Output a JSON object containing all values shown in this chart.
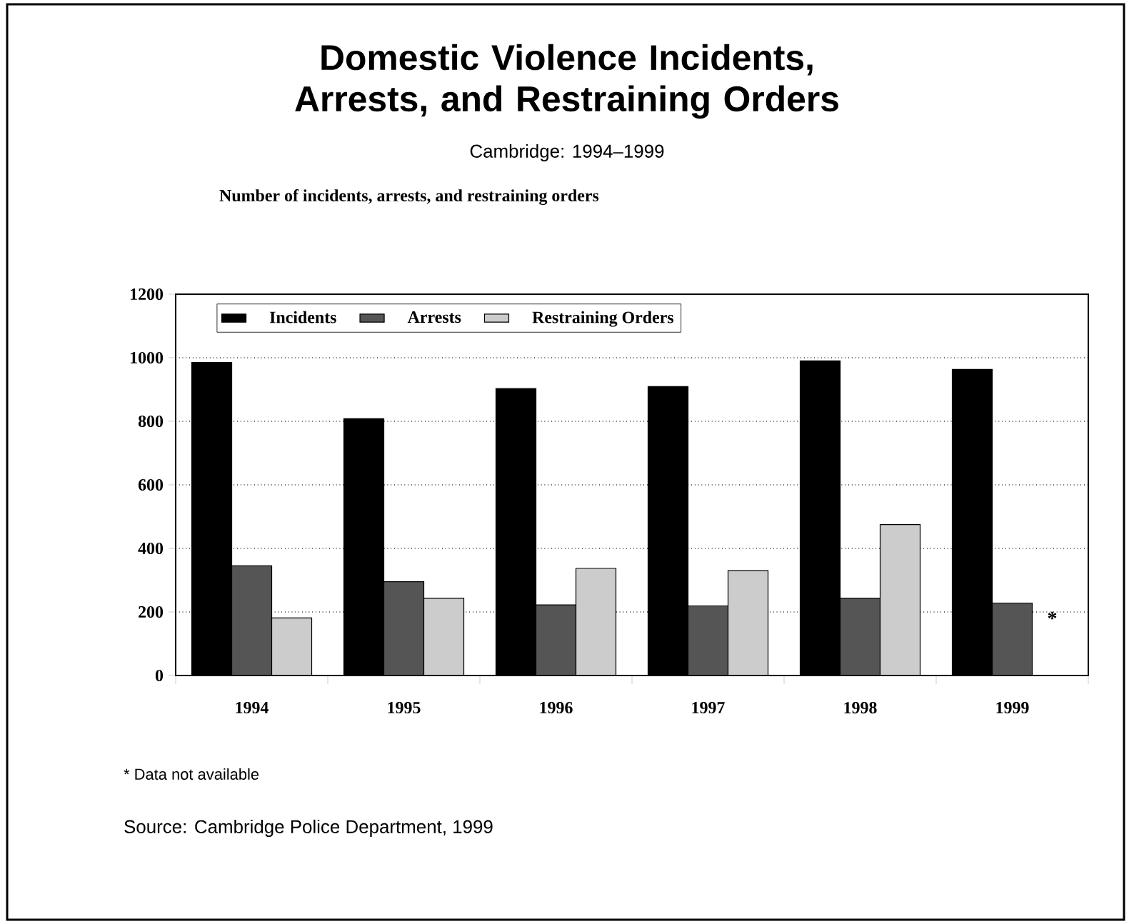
{
  "chart_data": {
    "type": "bar",
    "title": "Domestic Violence Incidents, Arrests, and Restraining Orders",
    "subtitle": "Cambridge: 1994–1999",
    "ylabel": "Number of incidents, arrests, and restraining orders",
    "categories": [
      "1994",
      "1995",
      "1996",
      "1997",
      "1998",
      "1999"
    ],
    "series": [
      {
        "name": "Incidents",
        "color": "#000000",
        "values": [
          985,
          808,
          903,
          909,
          990,
          963
        ]
      },
      {
        "name": "Arrests",
        "color": "#555555",
        "values": [
          345,
          295,
          222,
          219,
          243,
          228
        ]
      },
      {
        "name": "Restraining Orders",
        "color": "#cccccc",
        "values": [
          181,
          243,
          337,
          330,
          475,
          null
        ]
      }
    ],
    "ylim": [
      0,
      1200
    ],
    "yticks": [
      0,
      200,
      400,
      600,
      800,
      1000,
      1200
    ],
    "grid": "y",
    "legend": "top left",
    "annotations": [
      "*",
      "* Data not available",
      "Source: Cambridge Police Department, 1999"
    ]
  }
}
